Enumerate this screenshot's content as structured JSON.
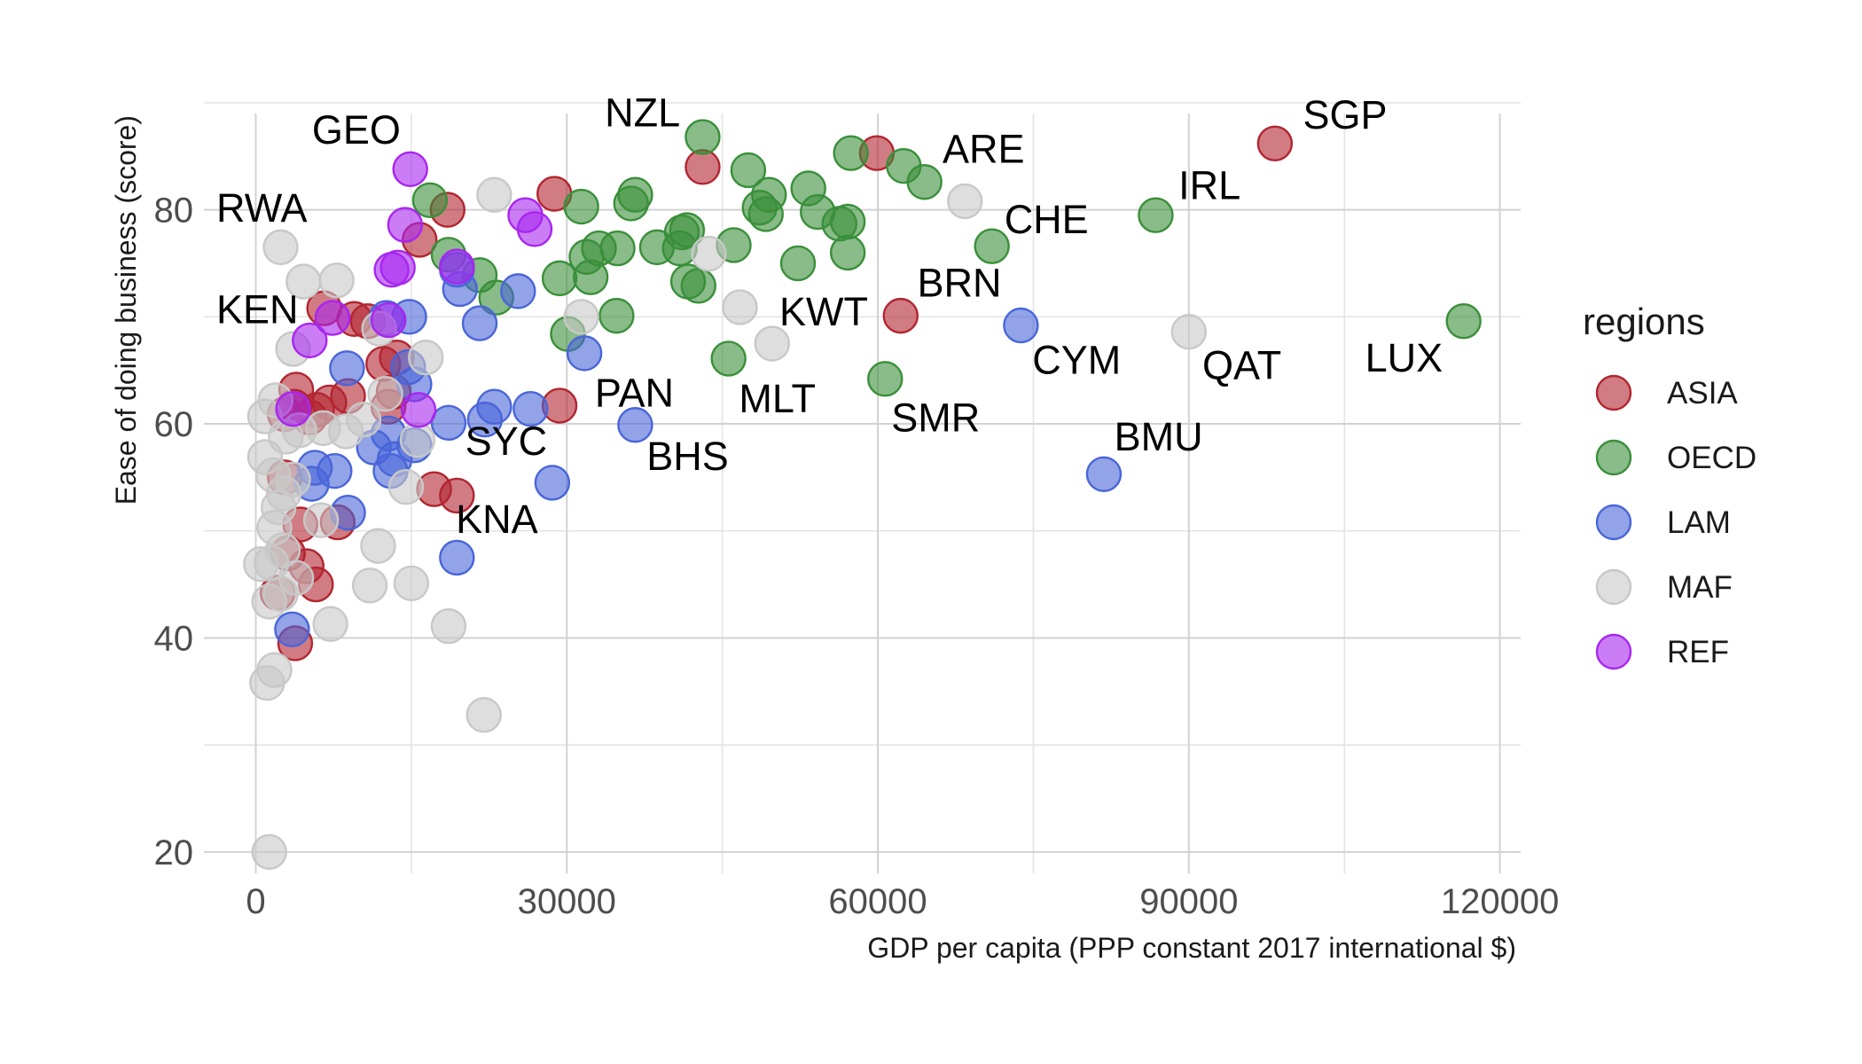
{
  "chart_data": {
    "type": "scatter",
    "xlabel": "GDP per capita (PPP constant 2017 international $)",
    "ylabel": "Ease of doing business (score)",
    "xlim": [
      -5000,
      122000
    ],
    "ylim": [
      18,
      89
    ],
    "x_ticks": [
      0,
      30000,
      60000,
      90000,
      120000
    ],
    "x_tick_labels": [
      "0",
      "30000",
      "60000",
      "90000",
      "120000"
    ],
    "y_ticks": [
      20,
      40,
      60,
      80
    ],
    "y_tick_labels": [
      "20",
      "40",
      "60",
      "80"
    ],
    "grid": true,
    "legend": {
      "title": "regions",
      "position": "right"
    },
    "series": [
      {
        "name": "ASIA",
        "color": "#b22530",
        "points": [
          [
            98300,
            86.2
          ],
          [
            59900,
            85.3
          ],
          [
            43100,
            84.0
          ],
          [
            62200,
            70.1
          ],
          [
            28800,
            81.5
          ],
          [
            18500,
            80.0
          ],
          [
            15800,
            77.2
          ],
          [
            29300,
            61.7
          ],
          [
            17200,
            53.9
          ],
          [
            19400,
            53.3
          ],
          [
            9500,
            69.8
          ],
          [
            10800,
            69.6
          ],
          [
            6600,
            70.8
          ],
          [
            13600,
            66.2
          ],
          [
            12300,
            65.6
          ],
          [
            12800,
            61.6
          ],
          [
            13300,
            63.0
          ],
          [
            8900,
            62.6
          ],
          [
            7100,
            62.0
          ],
          [
            5900,
            61.3
          ],
          [
            3900,
            63.2
          ],
          [
            3700,
            61.6
          ],
          [
            2800,
            60.9
          ],
          [
            5200,
            60.6
          ],
          [
            7900,
            50.8
          ],
          [
            4300,
            50.6
          ],
          [
            2800,
            55.0
          ],
          [
            3100,
            47.9
          ],
          [
            4900,
            46.7
          ],
          [
            5800,
            45.0
          ],
          [
            2100,
            44.2
          ],
          [
            3800,
            39.5
          ]
        ]
      },
      {
        "name": "OECD",
        "color": "#3a8f3a",
        "points": [
          [
            43100,
            86.8
          ],
          [
            57400,
            85.3
          ],
          [
            62500,
            84.1
          ],
          [
            64500,
            82.6
          ],
          [
            47500,
            83.7
          ],
          [
            49500,
            81.4
          ],
          [
            53300,
            82.0
          ],
          [
            54200,
            79.8
          ],
          [
            56300,
            78.7
          ],
          [
            57100,
            78.9
          ],
          [
            48600,
            80.2
          ],
          [
            49200,
            79.6
          ],
          [
            86800,
            79.5
          ],
          [
            71000,
            76.6
          ],
          [
            116500,
            69.6
          ],
          [
            36600,
            81.4
          ],
          [
            36200,
            80.6
          ],
          [
            31400,
            80.3
          ],
          [
            16800,
            80.9
          ],
          [
            41100,
            77.9
          ],
          [
            41600,
            78.1
          ],
          [
            38700,
            76.5
          ],
          [
            40900,
            76.4
          ],
          [
            46100,
            76.7
          ],
          [
            57100,
            76.0
          ],
          [
            52300,
            75.0
          ],
          [
            31900,
            75.6
          ],
          [
            33100,
            76.4
          ],
          [
            34900,
            76.4
          ],
          [
            32300,
            73.7
          ],
          [
            29300,
            73.6
          ],
          [
            41700,
            73.3
          ],
          [
            42700,
            72.9
          ],
          [
            23200,
            71.8
          ],
          [
            21600,
            73.9
          ],
          [
            18600,
            75.8
          ],
          [
            34800,
            70.1
          ],
          [
            30100,
            68.4
          ],
          [
            45600,
            66.1
          ],
          [
            60700,
            64.2
          ]
        ]
      },
      {
        "name": "LAM",
        "color": "#4965d9",
        "points": [
          [
            73800,
            69.2
          ],
          [
            81800,
            55.3
          ],
          [
            36600,
            59.9
          ],
          [
            31700,
            66.6
          ],
          [
            28600,
            54.5
          ],
          [
            26500,
            61.4
          ],
          [
            23000,
            61.6
          ],
          [
            22100,
            60.4
          ],
          [
            18600,
            60.1
          ],
          [
            19400,
            47.5
          ],
          [
            21600,
            69.4
          ],
          [
            19700,
            72.6
          ],
          [
            25300,
            72.4
          ],
          [
            19400,
            74.4
          ],
          [
            14800,
            70.0
          ],
          [
            12600,
            69.9
          ],
          [
            15300,
            63.7
          ],
          [
            14700,
            65.3
          ],
          [
            12800,
            59.1
          ],
          [
            15300,
            58.0
          ],
          [
            11400,
            57.8
          ],
          [
            13400,
            56.7
          ],
          [
            13000,
            55.6
          ],
          [
            8800,
            65.2
          ],
          [
            5700,
            55.9
          ],
          [
            7600,
            55.6
          ],
          [
            5400,
            54.4
          ],
          [
            8900,
            51.7
          ],
          [
            3500,
            40.8
          ]
        ]
      },
      {
        "name": "MAF",
        "color": "#c8c8c8",
        "points": [
          [
            68400,
            80.8
          ],
          [
            23000,
            81.4
          ],
          [
            46700,
            70.9
          ],
          [
            49800,
            67.5
          ],
          [
            90000,
            68.6
          ],
          [
            43700,
            75.9
          ],
          [
            31400,
            70.0
          ],
          [
            2400,
            76.5
          ],
          [
            4600,
            73.3
          ],
          [
            7800,
            73.4
          ],
          [
            3600,
            67.0
          ],
          [
            11900,
            68.9
          ],
          [
            16400,
            66.2
          ],
          [
            12500,
            62.8
          ],
          [
            15600,
            58.5
          ],
          [
            14500,
            54.1
          ],
          [
            11800,
            48.6
          ],
          [
            11000,
            44.9
          ],
          [
            15000,
            45.1
          ],
          [
            18600,
            41.1
          ],
          [
            22000,
            32.8
          ],
          [
            7200,
            41.3
          ],
          [
            900,
            60.7
          ],
          [
            1900,
            62.2
          ],
          [
            2900,
            58.8
          ],
          [
            4200,
            59.4
          ],
          [
            8700,
            59.3
          ],
          [
            10400,
            60.4
          ],
          [
            6500,
            59.6
          ],
          [
            900,
            56.9
          ],
          [
            1700,
            55.2
          ],
          [
            2700,
            53.5
          ],
          [
            3600,
            54.8
          ],
          [
            2200,
            52.2
          ],
          [
            1800,
            50.3
          ],
          [
            2600,
            48.2
          ],
          [
            1500,
            47.0
          ],
          [
            500,
            46.9
          ],
          [
            2400,
            44.1
          ],
          [
            3900,
            45.6
          ],
          [
            1300,
            43.4
          ],
          [
            6300,
            51.0
          ],
          [
            1800,
            37.0
          ],
          [
            1100,
            35.8
          ],
          [
            1300,
            20.0
          ]
        ]
      },
      {
        "name": "REF",
        "color": "#a826f0",
        "points": [
          [
            14900,
            83.8
          ],
          [
            14400,
            78.6
          ],
          [
            13700,
            74.6
          ],
          [
            13100,
            74.4
          ],
          [
            26000,
            79.5
          ],
          [
            26900,
            78.2
          ],
          [
            19400,
            74.7
          ],
          [
            7400,
            69.9
          ],
          [
            12800,
            69.7
          ],
          [
            5200,
            67.8
          ],
          [
            15700,
            61.3
          ],
          [
            3600,
            61.4
          ]
        ]
      }
    ],
    "annotations": [
      {
        "text": "GEO",
        "x": 9700,
        "y": 86.2,
        "anchor": "middle"
      },
      {
        "text": "NZL",
        "x": 37300,
        "y": 87.8,
        "anchor": "middle"
      },
      {
        "text": "ARE",
        "x": 70200,
        "y": 84.4,
        "anchor": "middle"
      },
      {
        "text": "SGP",
        "x": 101000,
        "y": 87.6,
        "anchor": "start"
      },
      {
        "text": "IRL",
        "x": 89000,
        "y": 81.0,
        "anchor": "start"
      },
      {
        "text": "CHE",
        "x": 72200,
        "y": 77.8,
        "anchor": "start"
      },
      {
        "text": "RWA",
        "x": -3800,
        "y": 78.9,
        "anchor": "start"
      },
      {
        "text": "BRN",
        "x": 63800,
        "y": 71.9,
        "anchor": "start"
      },
      {
        "text": "KEN",
        "x": -3800,
        "y": 69.4,
        "anchor": "start"
      },
      {
        "text": "KWT",
        "x": 50500,
        "y": 69.2,
        "anchor": "start"
      },
      {
        "text": "CYM",
        "x": 74900,
        "y": 64.7,
        "anchor": "start"
      },
      {
        "text": "QAT",
        "x": 91300,
        "y": 64.2,
        "anchor": "start"
      },
      {
        "text": "LUX",
        "x": 107000,
        "y": 64.9,
        "anchor": "start"
      },
      {
        "text": "PAN",
        "x": 32700,
        "y": 61.6,
        "anchor": "start"
      },
      {
        "text": "MLT",
        "x": 46600,
        "y": 61.1,
        "anchor": "start"
      },
      {
        "text": "SMR",
        "x": 61300,
        "y": 59.3,
        "anchor": "start"
      },
      {
        "text": "SYC",
        "x": 20200,
        "y": 57.1,
        "anchor": "start"
      },
      {
        "text": "BHS",
        "x": 37700,
        "y": 55.7,
        "anchor": "start"
      },
      {
        "text": "BMU",
        "x": 82800,
        "y": 57.5,
        "anchor": "start"
      },
      {
        "text": "KNA",
        "x": 19300,
        "y": 49.8,
        "anchor": "start"
      }
    ]
  }
}
